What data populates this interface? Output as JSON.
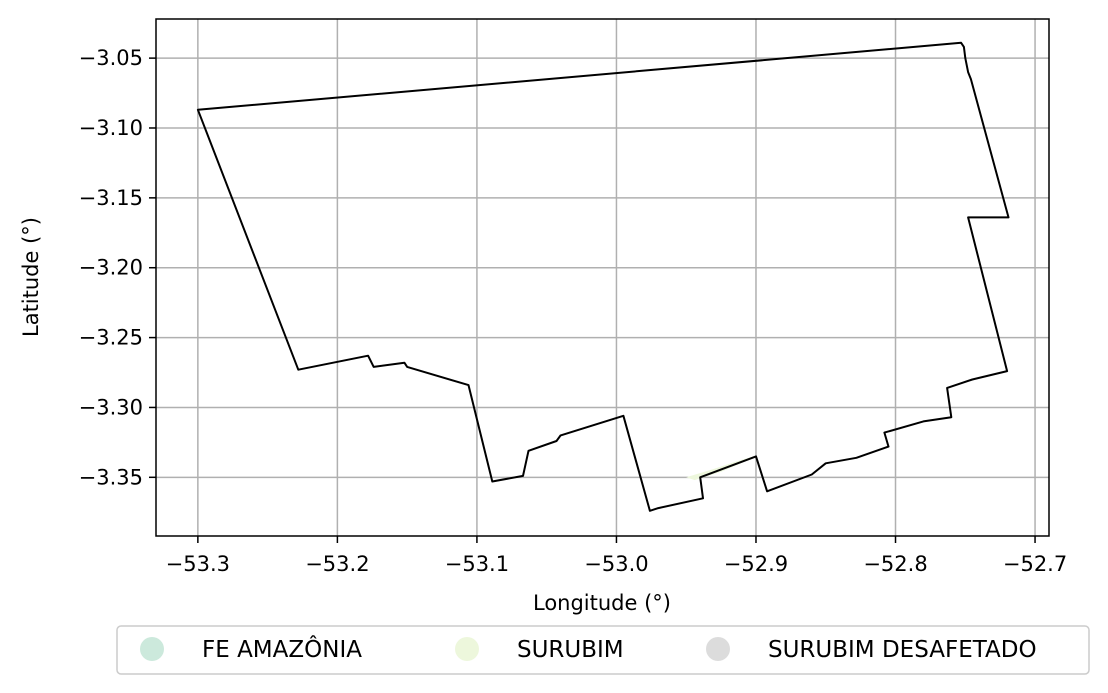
{
  "chart_data": {
    "type": "map",
    "xlabel": "Longitude (°)",
    "ylabel": "Latitude (°)",
    "xlim": [
      -53.33,
      -52.69
    ],
    "ylim": [
      -3.392,
      -3.022
    ],
    "grid": true,
    "x_ticks": [
      -53.3,
      -53.2,
      -53.1,
      -53.0,
      -52.9,
      -52.8,
      -52.7
    ],
    "x_tick_labels": [
      "−53.3",
      "−53.2",
      "−53.1",
      "−53.0",
      "−52.9",
      "−52.8",
      "−52.7"
    ],
    "y_ticks": [
      -3.05,
      -3.1,
      -3.15,
      -3.2,
      -3.25,
      -3.3,
      -3.35
    ],
    "y_tick_labels": [
      "−3.05",
      "−3.10",
      "−3.15",
      "−3.20",
      "−3.25",
      "−3.30",
      "−3.35"
    ],
    "legend_position": "bottom",
    "legend": [
      {
        "label": "FE AMAZÔNIA",
        "color": "#cce9dc"
      },
      {
        "label": "SURUBIM",
        "color": "#edf7dc"
      },
      {
        "label": "SURUBIM DESAFETADO",
        "color": "#dcdcdc"
      }
    ],
    "boundary": {
      "stroke": "#000000",
      "coordinates": [
        [
          -53.3,
          -3.087
        ],
        [
          -52.753,
          -3.039
        ],
        [
          -52.751,
          -3.042
        ],
        [
          -52.75,
          -3.05
        ],
        [
          -52.748,
          -3.06
        ],
        [
          -52.746,
          -3.065
        ],
        [
          -52.719,
          -3.164
        ],
        [
          -52.748,
          -3.164
        ],
        [
          -52.72,
          -3.274
        ],
        [
          -52.745,
          -3.28
        ],
        [
          -52.763,
          -3.286
        ],
        [
          -52.76,
          -3.307
        ],
        [
          -52.78,
          -3.31
        ],
        [
          -52.808,
          -3.318
        ],
        [
          -52.805,
          -3.328
        ],
        [
          -52.828,
          -3.336
        ],
        [
          -52.85,
          -3.34
        ],
        [
          -52.86,
          -3.348
        ],
        [
          -52.892,
          -3.36
        ],
        [
          -52.9,
          -3.335
        ],
        [
          -52.94,
          -3.35
        ],
        [
          -52.938,
          -3.365
        ],
        [
          -52.97,
          -3.372
        ],
        [
          -52.976,
          -3.374
        ],
        [
          -52.995,
          -3.306
        ],
        [
          -53.04,
          -3.32
        ],
        [
          -53.043,
          -3.324
        ],
        [
          -53.063,
          -3.331
        ],
        [
          -53.067,
          -3.349
        ],
        [
          -53.089,
          -3.353
        ],
        [
          -53.106,
          -3.284
        ],
        [
          -53.15,
          -3.271
        ],
        [
          -53.152,
          -3.268
        ],
        [
          -53.174,
          -3.271
        ],
        [
          -53.178,
          -3.263
        ],
        [
          -53.228,
          -3.273
        ],
        [
          -53.3,
          -3.087
        ]
      ]
    },
    "regions": [
      {
        "name": "SURUBIM",
        "color": "#edf7dc",
        "coordinates": [
          [
            -52.95,
            -3.35
          ],
          [
            -52.93,
            -3.344
          ],
          [
            -52.915,
            -3.339
          ],
          [
            -52.902,
            -3.335
          ],
          [
            -52.906,
            -3.338
          ],
          [
            -52.925,
            -3.346
          ],
          [
            -52.944,
            -3.352
          ],
          [
            -52.95,
            -3.35
          ]
        ]
      }
    ]
  }
}
